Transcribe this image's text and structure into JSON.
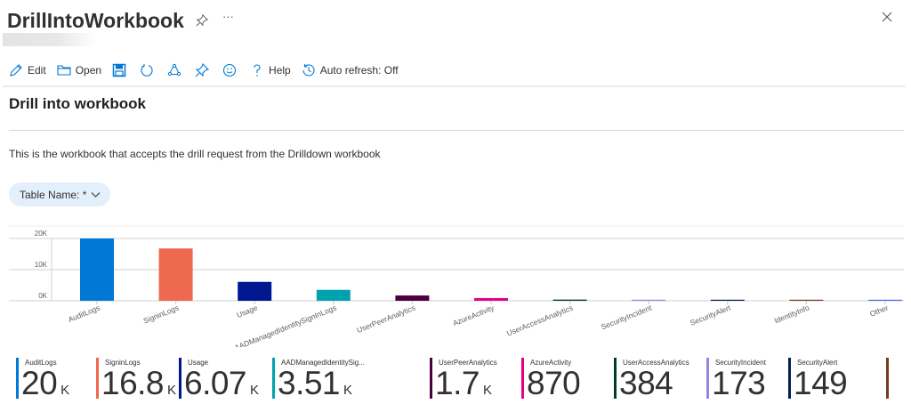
{
  "window": {
    "title": "DrillIntoWorkbook",
    "pin_icon": "pin-icon",
    "more_label": "···",
    "close_icon": "close-icon"
  },
  "toolbar": {
    "items": [
      {
        "icon": "edit-icon",
        "label": "Edit"
      },
      {
        "icon": "open-folder-icon",
        "label": "Open"
      },
      {
        "icon": "save-icon",
        "label": ""
      },
      {
        "icon": "refresh-icon",
        "label": ""
      },
      {
        "icon": "share-icon",
        "label": ""
      },
      {
        "icon": "pin-icon",
        "label": ""
      },
      {
        "icon": "feedback-smiley-icon",
        "label": ""
      },
      {
        "icon": "help-icon",
        "label": "Help"
      },
      {
        "icon": "history-icon",
        "label": "Auto refresh: Off"
      }
    ],
    "edit_label": "Edit",
    "open_label": "Open",
    "help_label": "Help",
    "auto_refresh_label": "Auto refresh: Off"
  },
  "content": {
    "section_title": "Drill into workbook",
    "description": "This is the workbook that accepts the drill request from the Drilldown workbook",
    "parameter": {
      "label": "Table Name: *",
      "icon": "chevron-down-icon"
    }
  },
  "colors": {
    "AuditLogs": "#0078d4",
    "SigninLogs": "#ef6950",
    "Usage": "#00188f",
    "AADManagedIdentitySignInLogs": "#00a2ad",
    "UserPeerAnalytics": "#4c0040",
    "AzureActivity": "#e3008c",
    "UserAccessAnalytics": "#003b2b",
    "SecurityIncident": "#9b82e0",
    "SecurityAlert": "#002050",
    "IdentityInfo": "#7a3a1f",
    "Other": "#4f6bed"
  },
  "chart_data": {
    "type": "bar",
    "title": "",
    "xlabel": "",
    "ylabel": "",
    "ylim": [
      0,
      20000
    ],
    "y_ticks": [
      "0K",
      "10K",
      "20K"
    ],
    "grid": true,
    "legend_position": "none",
    "categories": [
      "AuditLogs",
      "SigninLogs",
      "Usage",
      "AADManagedIdentitySignInLogs",
      "UserPeerAnalytics",
      "AzureActivity",
      "UserAccessAnalytics",
      "SecurityIncident",
      "SecurityAlert",
      "IdentityInfo",
      "Other"
    ],
    "x_tick_labels": [
      "AuditLogs",
      "SigninLogs",
      "Usage",
      "AADManagedIdentitySignInLogs",
      "UserPeerAnalytics",
      "AzureActivity",
      "UserAccessAnalytics",
      "SecurityIncident",
      "SecurityAlert",
      "IdentityInfo",
      "Other"
    ],
    "values": [
      20000,
      16800,
      6070,
      3510,
      1700,
      870,
      384,
      173,
      149,
      100,
      120
    ],
    "colors": [
      "#0078d4",
      "#ef6950",
      "#00188f",
      "#00a2ad",
      "#4c0040",
      "#e3008c",
      "#003b2b",
      "#9b82e0",
      "#002050",
      "#7a3a1f",
      "#4f6bed"
    ]
  },
  "tiles": [
    {
      "label": "AuditLogs",
      "value": "20",
      "unit": "K",
      "color": "#0078d4"
    },
    {
      "label": "SigninLogs",
      "value": "16.8",
      "unit": "K",
      "color": "#ef6950"
    },
    {
      "label": "Usage",
      "value": "6.07",
      "unit": "K",
      "color": "#00188f"
    },
    {
      "label": "AADManagedIdentitySig...",
      "value": "3.51",
      "unit": "K",
      "color": "#00a2ad"
    },
    {
      "label": "UserPeerAnalytics",
      "value": "1.7",
      "unit": "K",
      "color": "#4c0040"
    },
    {
      "label": "AzureActivity",
      "value": "870",
      "unit": "",
      "color": "#e3008c"
    },
    {
      "label": "UserAccessAnalytics",
      "value": "384",
      "unit": "",
      "color": "#003b2b"
    },
    {
      "label": "SecurityIncident",
      "value": "173",
      "unit": "",
      "color": "#9b82e0"
    },
    {
      "label": "SecurityAlert",
      "value": "149",
      "unit": "",
      "color": "#002050"
    },
    {
      "label": "",
      "value": "",
      "unit": "",
      "color": "#7a3a1f"
    }
  ]
}
